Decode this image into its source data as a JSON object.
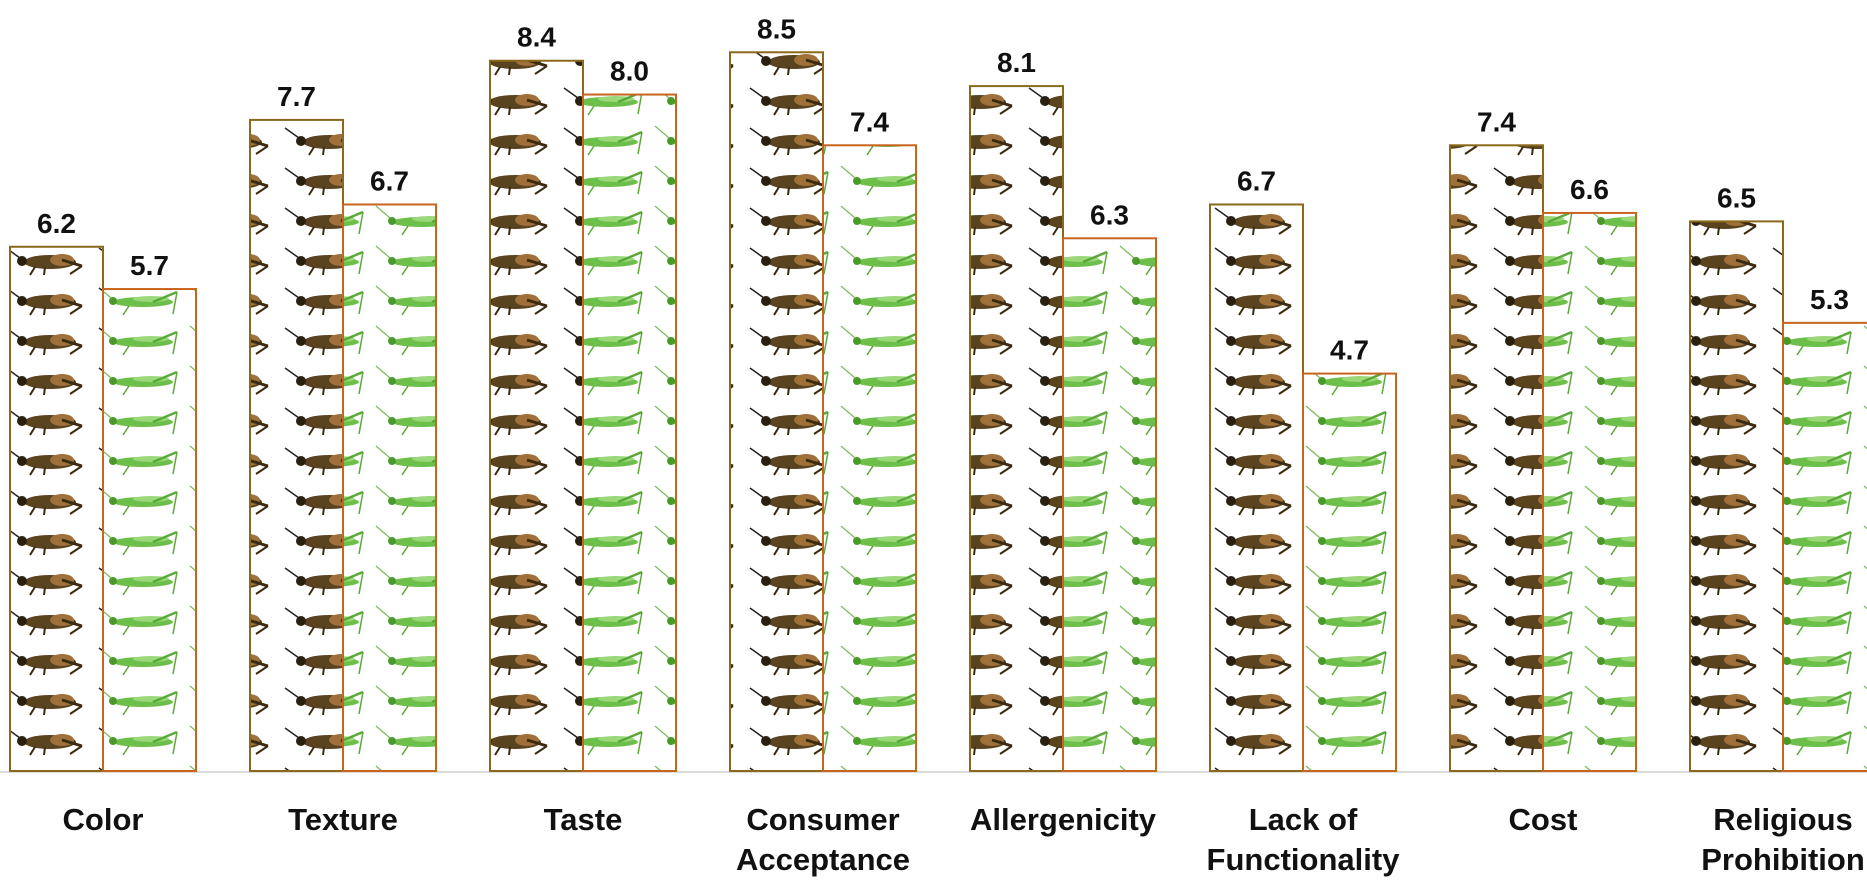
{
  "chart_data": {
    "type": "bar",
    "categories": [
      "Color",
      "Texture",
      "Taste",
      "Consumer Acceptance",
      "Allergenicity",
      "Lack of Functionality",
      "Cost",
      "Religious Prohibition"
    ],
    "series": [
      {
        "color": "#8a6a1a",
        "values": [
          6.2,
          7.7,
          8.4,
          8.5,
          8.1,
          6.7,
          7.4,
          6.5
        ]
      },
      {
        "color": "#c8641e",
        "values": [
          5.7,
          6.7,
          8.0,
          7.4,
          6.3,
          4.7,
          6.6,
          5.3
        ],
        "value_labels": [
          "5.7",
          "6.7",
          "8.0",
          "7.4",
          "6.3",
          "4.7",
          "6.6",
          "5.3"
        ]
      }
    ],
    "ylim": [
      0,
      9
    ]
  }
}
